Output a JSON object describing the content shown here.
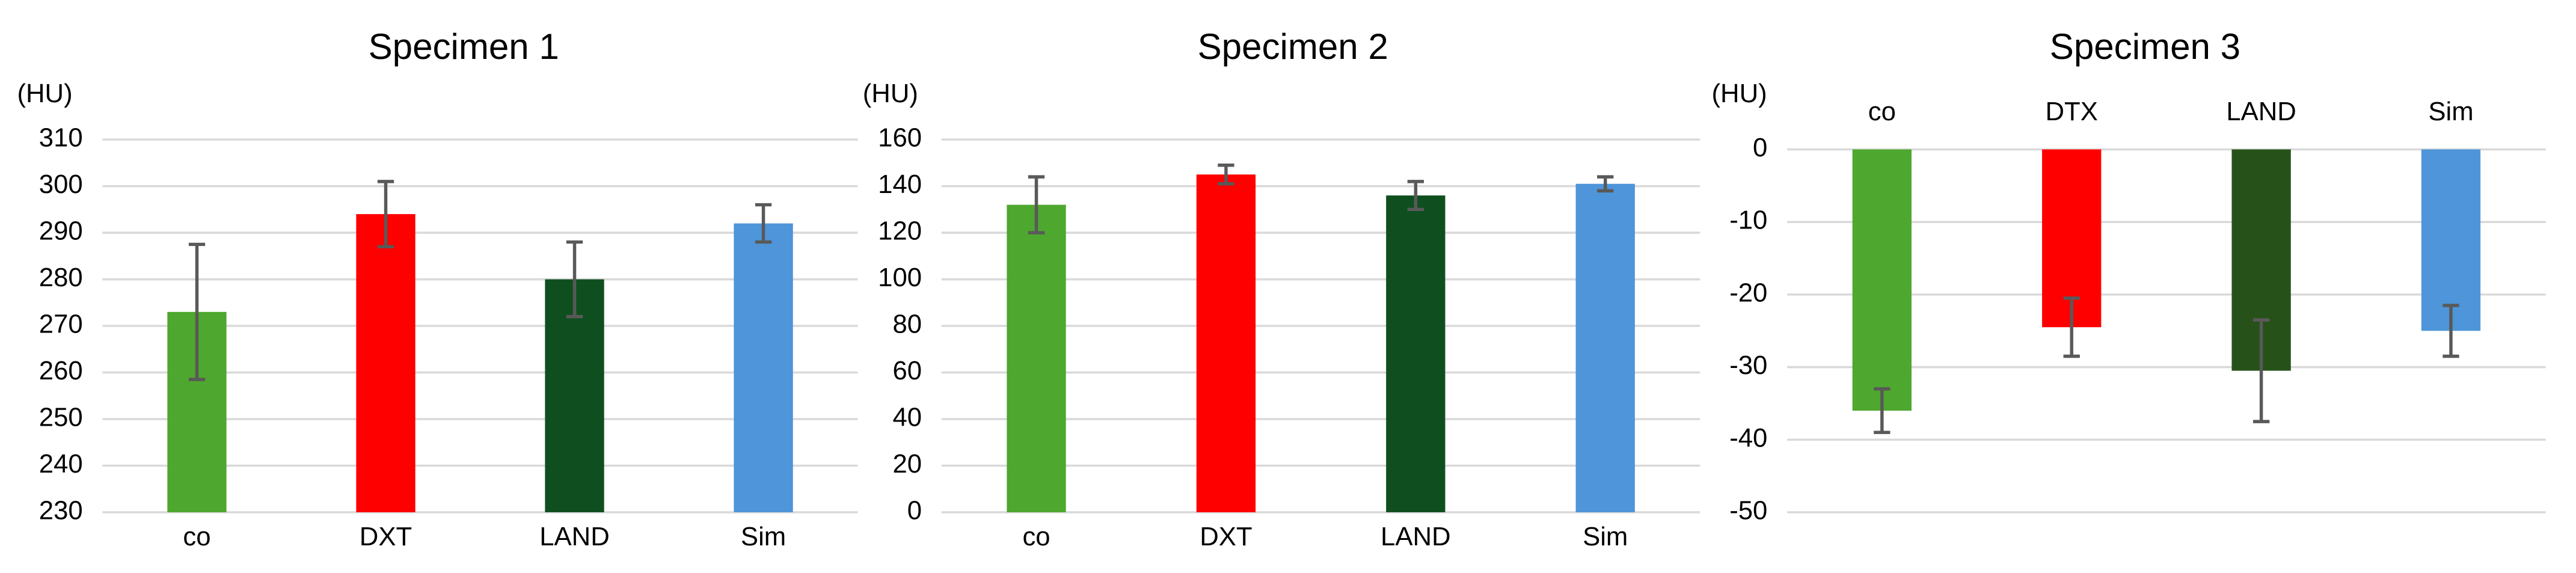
{
  "chart_data": [
    {
      "type": "bar",
      "title": "Specimen 1",
      "y_label": "(HU)",
      "categories": [
        "co",
        "DXT",
        "LAND",
        "Sim"
      ],
      "values": [
        273,
        294,
        280,
        292
      ],
      "errors": [
        14.5,
        7,
        8,
        4
      ],
      "colors": [
        "#4ea72e",
        "#ff0000",
        "#0f4f1f",
        "#4e95d9"
      ],
      "ylim": [
        230,
        310
      ],
      "yticks": [
        230,
        240,
        250,
        260,
        270,
        280,
        290,
        300,
        310
      ],
      "grid": true
    },
    {
      "type": "bar",
      "title": "Specimen 2",
      "y_label": "(HU)",
      "categories": [
        "co",
        "DXT",
        "LAND",
        "Sim"
      ],
      "values": [
        132,
        145,
        136,
        141
      ],
      "errors": [
        12,
        4,
        6,
        3
      ],
      "colors": [
        "#4ea72e",
        "#ff0000",
        "#0f4f1f",
        "#4e95d9"
      ],
      "ylim": [
        0,
        160
      ],
      "yticks": [
        0,
        20,
        40,
        60,
        80,
        100,
        120,
        140,
        160
      ],
      "grid": true
    },
    {
      "type": "bar",
      "title": "Specimen 3",
      "y_label": "(HU)",
      "categories": [
        "co",
        "DTX",
        "LAND",
        "Sim"
      ],
      "values": [
        -36,
        -24.5,
        -30.5,
        -25
      ],
      "errors": [
        3,
        4,
        7,
        3.5
      ],
      "colors": [
        "#4ea72e",
        "#ff0000",
        "#265219",
        "#4e95d9"
      ],
      "ylim": [
        -50,
        0
      ],
      "yticks": [
        -50,
        -40,
        -30,
        -20,
        -10,
        0
      ],
      "grid": true
    }
  ]
}
